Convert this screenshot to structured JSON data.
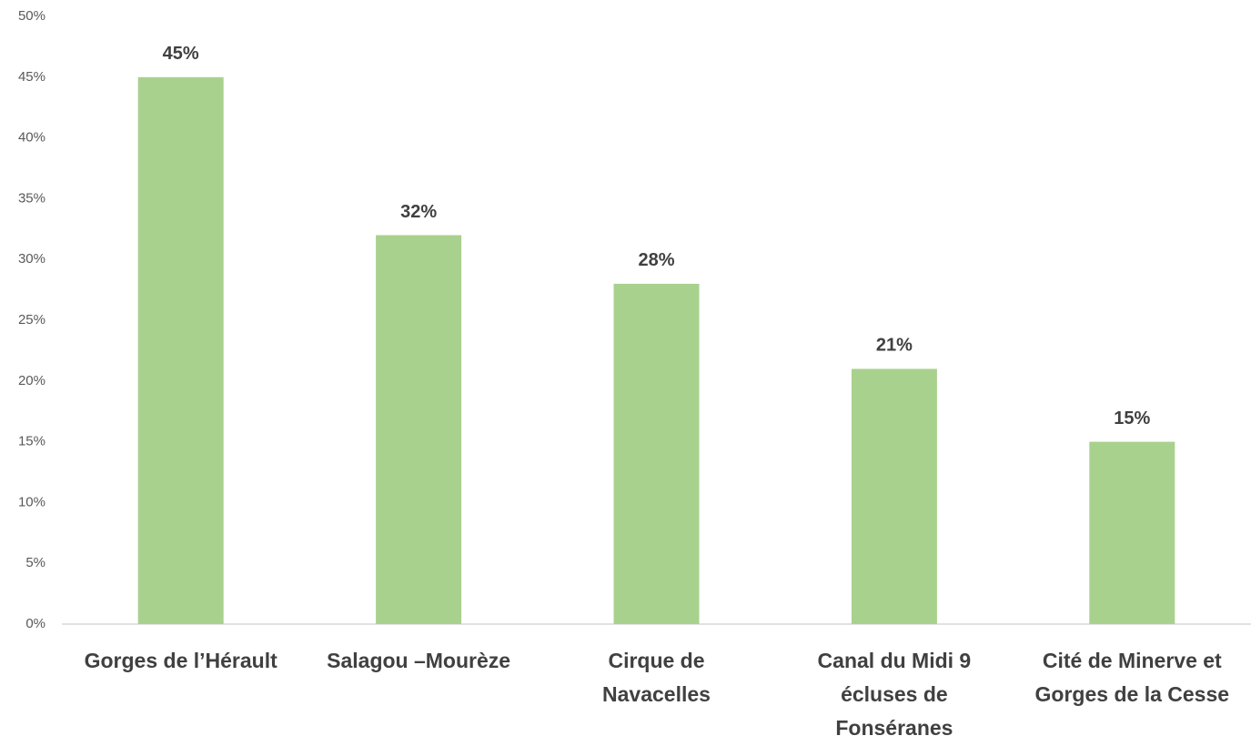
{
  "chart_data": {
    "type": "bar",
    "categories": [
      "Gorges de l’Hérault",
      "Salagou –Mourèze",
      "Cirque de\nNavacelles",
      "Canal du Midi 9\nécluses de\nFonséranes",
      "Cité de Minerve et\nGorges de la Cesse"
    ],
    "values": [
      45,
      32,
      28,
      21,
      15
    ],
    "value_labels": [
      "45%",
      "32%",
      "28%",
      "21%",
      "15%"
    ],
    "color": "#a9d18e",
    "ylim": [
      0,
      50
    ],
    "yticks": [
      {
        "value": 0,
        "label": "0%"
      },
      {
        "value": 5,
        "label": "5%"
      },
      {
        "value": 10,
        "label": "10%"
      },
      {
        "value": 15,
        "label": "15%"
      },
      {
        "value": 20,
        "label": "20%"
      },
      {
        "value": 25,
        "label": "25%"
      },
      {
        "value": 30,
        "label": "30%"
      },
      {
        "value": 35,
        "label": "35%"
      },
      {
        "value": 40,
        "label": "40%"
      },
      {
        "value": 45,
        "label": "45%"
      },
      {
        "value": 50,
        "label": "50%"
      }
    ],
    "grid": false
  }
}
